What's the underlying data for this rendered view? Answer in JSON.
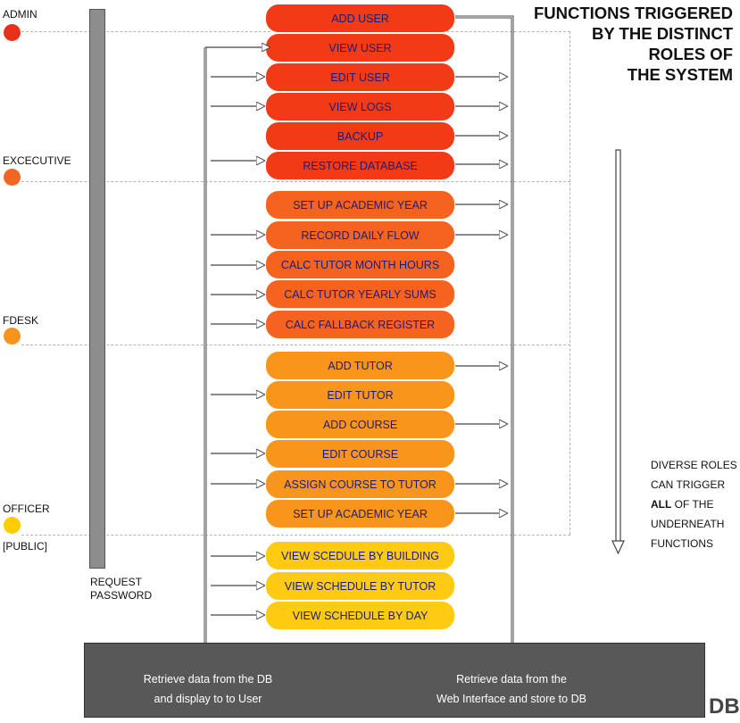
{
  "title_lines": [
    "FUNCTIONS TRIGGERED",
    "BY THE DISTINCT",
    "ROLES OF",
    "THE SYSTEM"
  ],
  "roles": [
    {
      "label": "ADMIN",
      "color": "#e8311a"
    },
    {
      "label": "EXCECUTIVE",
      "color": "#f26522"
    },
    {
      "label": "FDESK",
      "color": "#f7941d"
    },
    {
      "label": "OFFICER",
      "color": "#ffcc00"
    }
  ],
  "public_label": "[PUBLIC]",
  "request_password": [
    "REQUEST",
    "PASSWORD"
  ],
  "groups": {
    "admin": {
      "color": "#f23b16",
      "functions": [
        "ADD USER",
        "VIEW USER",
        "EDIT USER",
        "VIEW LOGS",
        "BACKUP",
        "RESTORE DATABASE"
      ]
    },
    "executive": {
      "color": "#f6631e",
      "functions": [
        "SET UP ACADEMIC YEAR",
        "RECORD DAILY FLOW",
        "CALC TUTOR MONTH HOURS",
        "CALC TUTOR YEARLY SUMS",
        "CALC FALLBACK REGISTER"
      ]
    },
    "fdesk": {
      "color": "#f9951a",
      "functions": [
        "ADD TUTOR",
        "EDIT TUTOR",
        "ADD COURSE",
        "EDIT COURSE",
        "ASSIGN COURSE TO TUTOR",
        "SET UP ACADEMIC YEAR"
      ]
    },
    "officer": {
      "color": "#ffca12",
      "functions": [
        "VIEW SCEDULE BY BUILDING",
        "VIEW SCHEDULE BY TUTOR",
        "VIEW SCHEDULE BY DAY"
      ]
    }
  },
  "side_note": {
    "line1": "DIVERSE ROLES",
    "line2": "CAN TRIGGER",
    "bold": "ALL",
    "line3_rest": " OF THE",
    "line4": "UNDERNEATH",
    "line5": "FUNCTIONS"
  },
  "db": {
    "retrieve_display": [
      "Retrieve data from the DB",
      "and display to to User"
    ],
    "retrieve_store": [
      "Retrieve data from the",
      "Web Interface and store to DB"
    ],
    "label": "DB"
  }
}
